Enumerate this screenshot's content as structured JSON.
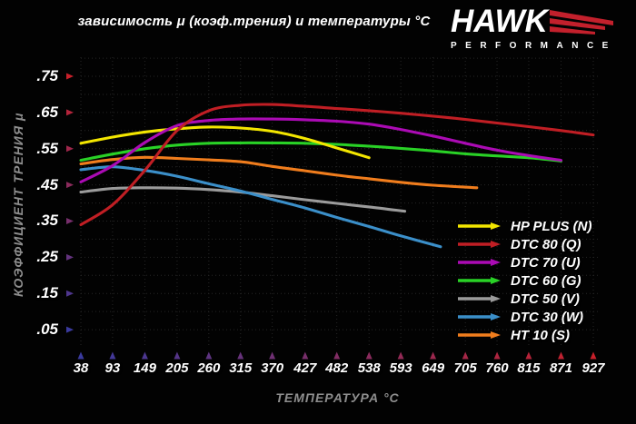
{
  "title": "зависимость μ (коэф.трения) и температуры °C",
  "logo": {
    "brand": "HAWK",
    "subtitle": "PERFORMANCE",
    "wing_color": "#c3202c"
  },
  "axes": {
    "x_label": "ТЕМПЕРАТУРА °C",
    "y_label": "КОЭФФИЦИЕНТ ТРЕНИЯ μ",
    "x_tick_labels": [
      "38",
      "93",
      "149",
      "205",
      "260",
      "315",
      "370",
      "427",
      "482",
      "538",
      "593",
      "649",
      "705",
      "760",
      "815",
      "871",
      "927"
    ],
    "y_tick_labels": [
      ".75",
      ".65",
      ".55",
      ".45",
      ".35",
      ".25",
      ".15",
      ".05"
    ],
    "hot_color": "#c8202a",
    "cold_color": "#3a3a9e"
  },
  "chart_data": {
    "type": "line",
    "title": "зависимость μ (коэф.трения) и температуры °C",
    "xlabel": "ТЕМПЕРАТУРА °C",
    "ylabel": "КОЭФФИЦИЕНТ ТРЕНИЯ μ",
    "x_ticks": [
      38,
      93,
      149,
      205,
      260,
      315,
      370,
      427,
      482,
      538,
      593,
      649,
      705,
      760,
      815,
      871,
      927
    ],
    "y_ticks": [
      0.05,
      0.15,
      0.25,
      0.35,
      0.45,
      0.55,
      0.65,
      0.75
    ],
    "xlim": [
      38,
      927
    ],
    "ylim": [
      0,
      0.8
    ],
    "grid": "dotted, y every 0.05, x every tick",
    "legend_position": "lower-right",
    "series": [
      {
        "name": "HP PLUS (N)",
        "color": "#f3e600",
        "points": [
          [
            38,
            0.565
          ],
          [
            93,
            0.582
          ],
          [
            149,
            0.596
          ],
          [
            205,
            0.605
          ],
          [
            260,
            0.61
          ],
          [
            315,
            0.607
          ],
          [
            370,
            0.598
          ],
          [
            427,
            0.578
          ],
          [
            482,
            0.552
          ],
          [
            538,
            0.525
          ]
        ]
      },
      {
        "name": "DTC 80 (Q)",
        "color": "#c01e24",
        "points": [
          [
            38,
            0.34
          ],
          [
            93,
            0.395
          ],
          [
            149,
            0.49
          ],
          [
            205,
            0.6
          ],
          [
            260,
            0.655
          ],
          [
            315,
            0.67
          ],
          [
            370,
            0.672
          ],
          [
            427,
            0.667
          ],
          [
            482,
            0.661
          ],
          [
            538,
            0.655
          ],
          [
            593,
            0.648
          ],
          [
            649,
            0.64
          ],
          [
            705,
            0.631
          ],
          [
            760,
            0.621
          ],
          [
            815,
            0.611
          ],
          [
            871,
            0.6
          ],
          [
            927,
            0.588
          ]
        ]
      },
      {
        "name": "DTC 70 (U)",
        "color": "#ab0bb4",
        "points": [
          [
            38,
            0.458
          ],
          [
            93,
            0.503
          ],
          [
            149,
            0.567
          ],
          [
            205,
            0.614
          ],
          [
            260,
            0.628
          ],
          [
            315,
            0.632
          ],
          [
            370,
            0.632
          ],
          [
            427,
            0.63
          ],
          [
            482,
            0.626
          ],
          [
            538,
            0.618
          ],
          [
            593,
            0.603
          ],
          [
            649,
            0.585
          ],
          [
            705,
            0.565
          ],
          [
            760,
            0.546
          ],
          [
            815,
            0.531
          ],
          [
            871,
            0.518
          ]
        ]
      },
      {
        "name": "DTC 60 (G)",
        "color": "#29d126",
        "points": [
          [
            38,
            0.518
          ],
          [
            93,
            0.535
          ],
          [
            149,
            0.55
          ],
          [
            205,
            0.56
          ],
          [
            260,
            0.565
          ],
          [
            315,
            0.566
          ],
          [
            370,
            0.566
          ],
          [
            427,
            0.565
          ],
          [
            482,
            0.562
          ],
          [
            538,
            0.557
          ],
          [
            593,
            0.551
          ],
          [
            649,
            0.544
          ],
          [
            705,
            0.536
          ],
          [
            760,
            0.53
          ],
          [
            815,
            0.525
          ],
          [
            871,
            0.516
          ]
        ]
      },
      {
        "name": "DTC 50 (V)",
        "color": "#9b9b9b",
        "points": [
          [
            38,
            0.43
          ],
          [
            93,
            0.44
          ],
          [
            149,
            0.442
          ],
          [
            205,
            0.441
          ],
          [
            260,
            0.437
          ],
          [
            315,
            0.43
          ],
          [
            370,
            0.42
          ],
          [
            427,
            0.409
          ],
          [
            482,
            0.399
          ],
          [
            538,
            0.389
          ],
          [
            600,
            0.377
          ]
        ]
      },
      {
        "name": "DTC 30 (W)",
        "color": "#3b8fc9",
        "points": [
          [
            38,
            0.492
          ],
          [
            93,
            0.5
          ],
          [
            149,
            0.49
          ],
          [
            205,
            0.474
          ],
          [
            260,
            0.453
          ],
          [
            315,
            0.433
          ],
          [
            370,
            0.41
          ],
          [
            427,
            0.386
          ],
          [
            482,
            0.36
          ],
          [
            538,
            0.335
          ],
          [
            593,
            0.309
          ],
          [
            662,
            0.279
          ]
        ]
      },
      {
        "name": "HT 10 (S)",
        "color": "#f07d1d",
        "points": [
          [
            38,
            0.508
          ],
          [
            93,
            0.52
          ],
          [
            149,
            0.526
          ],
          [
            205,
            0.523
          ],
          [
            260,
            0.519
          ],
          [
            315,
            0.514
          ],
          [
            370,
            0.501
          ],
          [
            427,
            0.489
          ],
          [
            482,
            0.477
          ],
          [
            538,
            0.467
          ],
          [
            593,
            0.457
          ],
          [
            649,
            0.449
          ],
          [
            725,
            0.442
          ]
        ]
      }
    ]
  }
}
